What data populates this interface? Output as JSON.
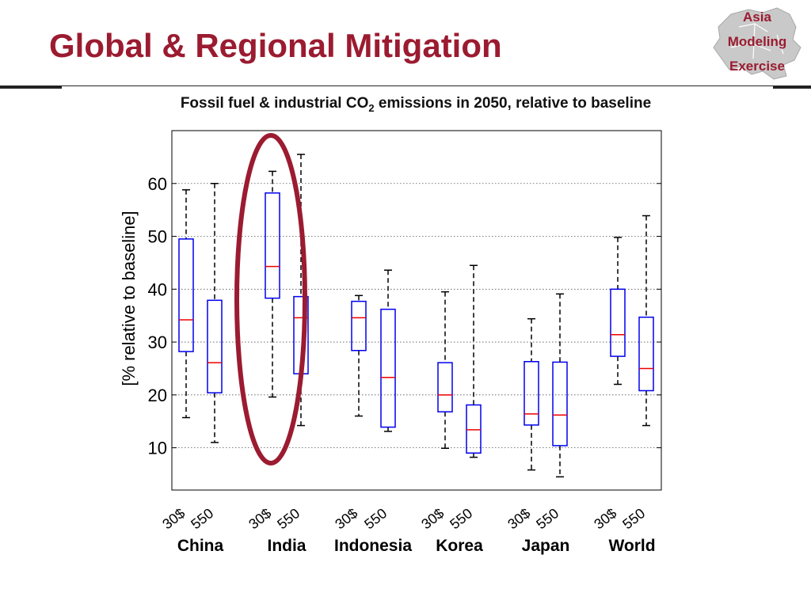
{
  "slide": {
    "title": "Global & Regional Mitigation",
    "logo": {
      "line1": "Asia",
      "line2": "Modeling",
      "line3": "Exercise"
    }
  },
  "chart_data": {
    "type": "box",
    "title_prefix": "Fossil fuel & industrial CO",
    "title_subscript": "2",
    "title_suffix": " emissions in 2050, relative to baseline",
    "ylabel": "[% relative to baseline]",
    "ylim": [
      2,
      70
    ],
    "yticks": [
      10,
      20,
      30,
      40,
      50,
      60
    ],
    "grid": true,
    "colors": {
      "box": "#0000ee",
      "median": "#ee0000",
      "whisker": "#000000",
      "highlight": "#9b1b30"
    },
    "scenarios": [
      "30$",
      "550"
    ],
    "highlight_group": "India",
    "groups": [
      {
        "region": "China",
        "boxes": [
          {
            "scenario": "30$",
            "whisker_low": 15.7,
            "q1": 28.2,
            "median": 34.2,
            "q3": 49.5,
            "whisker_high": 58.8
          },
          {
            "scenario": "550",
            "whisker_low": 11.0,
            "q1": 20.4,
            "median": 26.1,
            "q3": 37.9,
            "whisker_high": 60.0
          }
        ]
      },
      {
        "region": "India",
        "boxes": [
          {
            "scenario": "30$",
            "whisker_low": 19.6,
            "q1": 38.3,
            "median": 44.3,
            "q3": 58.2,
            "whisker_high": 62.3
          },
          {
            "scenario": "550",
            "whisker_low": 14.2,
            "q1": 24.0,
            "median": 34.6,
            "q3": 38.6,
            "whisker_high": 65.5
          }
        ]
      },
      {
        "region": "Indonesia",
        "boxes": [
          {
            "scenario": "30$",
            "whisker_low": 16.0,
            "q1": 28.4,
            "median": 34.6,
            "q3": 37.7,
            "whisker_high": 38.8
          },
          {
            "scenario": "550",
            "whisker_low": 13.1,
            "q1": 13.9,
            "median": 23.3,
            "q3": 36.2,
            "whisker_high": 43.6
          }
        ]
      },
      {
        "region": "Korea",
        "boxes": [
          {
            "scenario": "30$",
            "whisker_low": 9.9,
            "q1": 16.8,
            "median": 20.0,
            "q3": 26.1,
            "whisker_high": 39.5
          },
          {
            "scenario": "550",
            "whisker_low": 8.2,
            "q1": 9.0,
            "median": 13.4,
            "q3": 18.1,
            "whisker_high": 44.5
          }
        ]
      },
      {
        "region": "Japan",
        "boxes": [
          {
            "scenario": "30$",
            "whisker_low": 5.8,
            "q1": 14.3,
            "median": 16.4,
            "q3": 26.3,
            "whisker_high": 34.4
          },
          {
            "scenario": "550",
            "whisker_low": 4.5,
            "q1": 10.4,
            "median": 16.2,
            "q3": 26.2,
            "whisker_high": 39.1
          }
        ]
      },
      {
        "region": "World",
        "boxes": [
          {
            "scenario": "30$",
            "whisker_low": 22.0,
            "q1": 27.3,
            "median": 31.4,
            "q3": 40.0,
            "whisker_high": 49.8
          },
          {
            "scenario": "550",
            "whisker_low": 14.2,
            "q1": 20.8,
            "median": 25.0,
            "q3": 34.7,
            "whisker_high": 53.9
          }
        ]
      }
    ]
  }
}
